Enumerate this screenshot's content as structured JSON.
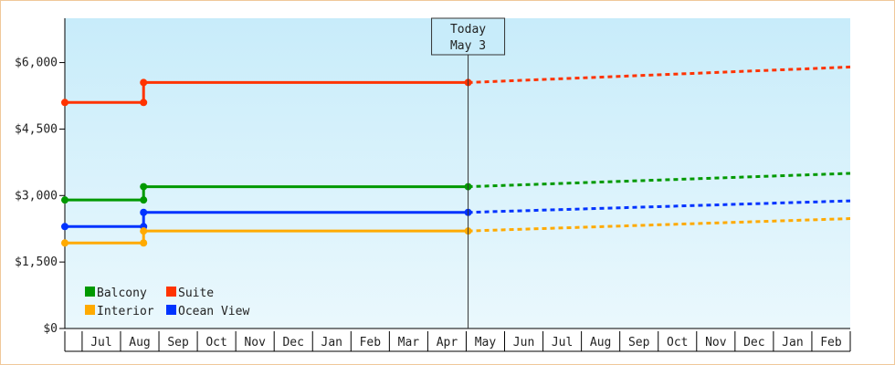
{
  "chart_data": {
    "type": "line",
    "title": "",
    "xlabel": "",
    "ylabel": "",
    "ylim": [
      0,
      7000
    ],
    "y_ticks": [
      {
        "value": 0,
        "label": "$0"
      },
      {
        "value": 1500,
        "label": "$1,500"
      },
      {
        "value": 3000,
        "label": "$3,000"
      },
      {
        "value": 4500,
        "label": "$4,500"
      },
      {
        "value": 6000,
        "label": "$6,000"
      }
    ],
    "x_months": [
      "Jul",
      "Aug",
      "Sep",
      "Oct",
      "Nov",
      "Dec",
      "Jan",
      "Feb",
      "Mar",
      "Apr",
      "May",
      "Jun",
      "Jul",
      "Aug",
      "Sep",
      "Oct",
      "Nov",
      "Dec",
      "Jan",
      "Feb"
    ],
    "x_range": [
      -0.45,
      20.0
    ],
    "today": {
      "line1": "Today",
      "line2": "May 3",
      "x": 10.05
    },
    "grid": false,
    "legend_position": "bottom-left",
    "series": [
      {
        "name": "Suite",
        "color": "#ff3300",
        "history": [
          [
            -0.45,
            5100
          ],
          [
            1.6,
            5100
          ],
          [
            1.6,
            5550
          ],
          [
            10.05,
            5550
          ]
        ],
        "forecast": [
          [
            10.05,
            5550
          ],
          [
            20.0,
            5900
          ]
        ]
      },
      {
        "name": "Balcony",
        "color": "#009900",
        "history": [
          [
            -0.45,
            2900
          ],
          [
            1.6,
            2900
          ],
          [
            1.6,
            3200
          ],
          [
            10.05,
            3200
          ]
        ],
        "forecast": [
          [
            10.05,
            3200
          ],
          [
            20.0,
            3500
          ]
        ]
      },
      {
        "name": "Ocean View",
        "color": "#0033ff",
        "history": [
          [
            -0.45,
            2300
          ],
          [
            1.6,
            2300
          ],
          [
            1.6,
            2620
          ],
          [
            10.05,
            2620
          ]
        ],
        "forecast": [
          [
            10.05,
            2620
          ],
          [
            20.0,
            2880
          ]
        ]
      },
      {
        "name": "Interior",
        "color": "#ffaa00",
        "history": [
          [
            -0.45,
            1930
          ],
          [
            1.6,
            1930
          ],
          [
            1.6,
            2200
          ],
          [
            10.05,
            2200
          ]
        ],
        "forecast": [
          [
            10.05,
            2200
          ],
          [
            20.0,
            2480
          ]
        ]
      }
    ],
    "legend_order": [
      "Balcony",
      "Suite",
      "Interior",
      "Ocean View"
    ],
    "colors": {
      "plot_bg_top": "#c8ecfa",
      "plot_bg_bottom": "#eaf8fd",
      "frame_border": "#f0c89a",
      "axis": "#000000"
    }
  }
}
